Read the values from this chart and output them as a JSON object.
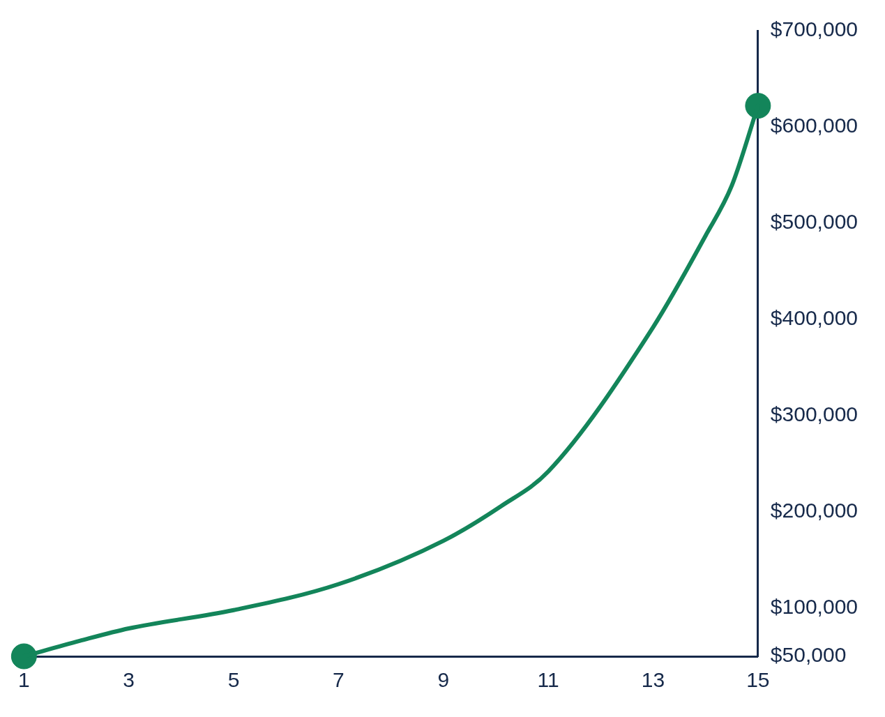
{
  "chart_data": {
    "type": "line",
    "x": [
      1,
      2.06,
      3,
      5,
      7,
      9,
      10.1,
      11,
      13,
      14,
      14.5,
      15
    ],
    "xlim": [
      1,
      15
    ],
    "xticks": [
      1,
      3,
      5,
      7,
      9,
      11,
      13,
      15
    ],
    "ylim": [
      50000,
      700000
    ],
    "yticks": [
      {
        "value": 50000,
        "label": "$50,000"
      },
      {
        "value": 100000,
        "label": "$100,000"
      },
      {
        "value": 200000,
        "label": "$200,000"
      },
      {
        "value": 300000,
        "label": "$300,000"
      },
      {
        "value": 400000,
        "label": "$400,000"
      },
      {
        "value": 500000,
        "label": "$500,000"
      },
      {
        "value": 600000,
        "label": "$600,000"
      },
      {
        "value": 700000,
        "label": "$700,000"
      }
    ],
    "grid": false,
    "legend": false,
    "line_style": "solid",
    "series": [
      {
        "color": "#13855a",
        "marker": "none",
        "values": [
          50000,
          66000,
          79000,
          98000,
          125000,
          170000,
          206000,
          242000,
          392000,
          487000,
          539000,
          622000
        ]
      },
      {
        "type": "scatter",
        "color": "#13855a",
        "marker": "circle",
        "x": [
          1,
          15
        ],
        "values": [
          50000,
          622000
        ]
      }
    ]
  }
}
